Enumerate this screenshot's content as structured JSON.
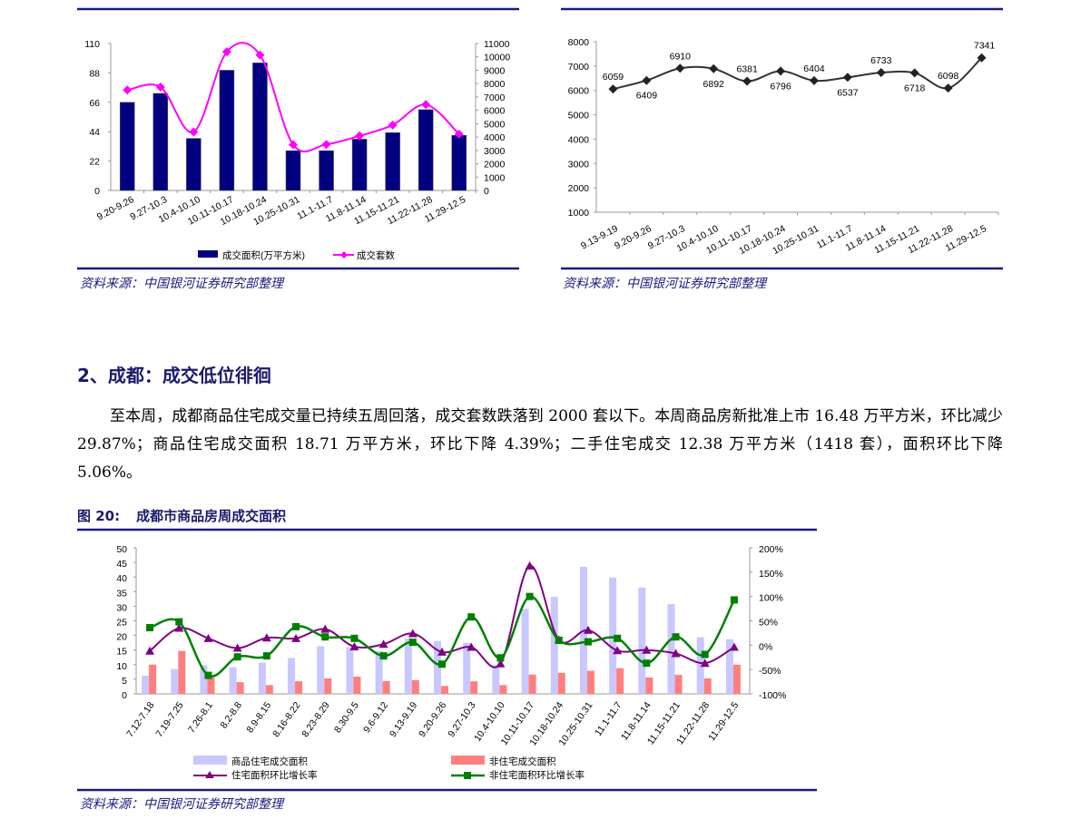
{
  "colors": {
    "rule": "#1a1a80",
    "navy_bar": "#000080",
    "magenta": "#ff00ff",
    "light_bar": "#c8c8ff",
    "red_bar": "#ff7f7f",
    "purple": "#800080",
    "green": "#008000",
    "dark_line": "#333333"
  },
  "source_label": "资料来源：中国银河证券研究部整理",
  "section": {
    "heading": "2、成都：成交低位徘徊",
    "paragraph": "至本周，成都商品住宅成交量已持续五周回落，成交套数跌落到 2000 套以下。本周商品房新批准上市 16.48 万平方米，环比减少 29.87%；商品住宅成交面积 18.71 万平方米，环比下降 4.39%；二手住宅成交 12.38 万平方米（1418 套），面积环比下降 5.06%。"
  },
  "figure20": {
    "number": "图 20:",
    "title": "成都市商品房周成交面积"
  },
  "chart_data": [
    {
      "type": "bar+line",
      "categories": [
        "9.20-9.26",
        "9.27-10.3",
        "10.4-10.10",
        "10.11-10.17",
        "10.18-10.24",
        "10.25-10.31",
        "11.1-11.7",
        "11.8-11.14",
        "11.15-11.21",
        "11.22-11.28",
        "11.29-12.5"
      ],
      "series": [
        {
          "name": "成交面积(万平方米)",
          "type": "bar",
          "axis": "left",
          "values": [
            66,
            72.7,
            39,
            90,
            95.5,
            29.8,
            29.8,
            38.4,
            43.3,
            60.5,
            41.3
          ]
        },
        {
          "name": "成交套数",
          "type": "line",
          "axis": "right",
          "values": [
            7520,
            7740,
            4380,
            10380,
            10140,
            3430,
            3450,
            4090,
            4900,
            6430,
            4220
          ]
        }
      ],
      "left_axis": {
        "ylim": [
          0,
          110
        ],
        "ticks": [
          0,
          22,
          44,
          66,
          88,
          110
        ]
      },
      "right_axis": {
        "ylim": [
          0,
          11000
        ],
        "ticks": [
          0,
          1000,
          2000,
          3000,
          4000,
          5000,
          6000,
          7000,
          8000,
          9000,
          10000,
          11000
        ]
      },
      "legend": "bottom",
      "grid": false
    },
    {
      "type": "line",
      "categories": [
        "9.13-9.19",
        "9.20-9.26",
        "9.27-10.3",
        "10.4-10.10",
        "10.11-10.17",
        "10.18-10.24",
        "10.25-10.31",
        "11.1-11.7",
        "11.8-11.14",
        "11.15-11.21",
        "11.22-11.28",
        "11.29-12.5"
      ],
      "values": [
        6059,
        6409,
        6910,
        6892,
        6381,
        6796,
        6404,
        6537,
        6733,
        6718,
        6098,
        7341
      ],
      "data_labels": true,
      "ylim": [
        1000,
        8000
      ],
      "ticks": [
        1000,
        2000,
        3000,
        4000,
        5000,
        6000,
        7000,
        8000
      ],
      "grid": false
    },
    {
      "type": "bar+line",
      "categories": [
        "7.12-7.18",
        "7.19-7.25",
        "7.26-8.1",
        "8.2-8.8",
        "8.9-8.15",
        "8.16-8.22",
        "8.23-8.29",
        "8.30-9.5",
        "9.6-9.12",
        "9.13-9.19",
        "9.20-9.26",
        "9.27-10.3",
        "10.4-10.10",
        "10.11-10.17",
        "10.18-10.24",
        "10.25-10.31",
        "11.1-11.7",
        "11.8-11.14",
        "11.15-11.21",
        "11.22-11.28",
        "11.29-12.5"
      ],
      "series": [
        {
          "name": "商品住宅成交面积",
          "type": "bar",
          "axis": "left",
          "values": [
            6.2,
            8.5,
            9.8,
            9.1,
            10.7,
            12.3,
            16.3,
            16,
            14.6,
            19,
            18.1,
            17.5,
            9.8,
            29.1,
            33.2,
            43.5,
            39.8,
            36.4,
            30.7,
            19.4,
            18.7
          ]
        },
        {
          "name": "非住宅成交面积",
          "type": "bar",
          "axis": "left",
          "values": [
            10,
            14.7,
            5.5,
            4,
            3,
            4.3,
            5.3,
            5.9,
            4.4,
            4.7,
            2.7,
            4.3,
            3,
            6.6,
            7.2,
            7.9,
            8.8,
            5.6,
            6.5,
            5.3,
            10
          ]
        },
        {
          "name": "住宅面积环比增长率",
          "type": "line",
          "axis": "right",
          "unit": "%",
          "values": [
            -12,
            35,
            14,
            -6,
            15,
            14,
            33,
            -3,
            2,
            24,
            -14,
            -4,
            -38,
            163,
            11,
            31,
            -11,
            -10,
            -17,
            -37,
            -4
          ]
        },
        {
          "name": "非住宅面积环比增长率",
          "type": "line",
          "axis": "right",
          "unit": "%",
          "values": [
            36,
            48,
            -62,
            -24,
            -22,
            38,
            17,
            14,
            -22,
            6,
            -39,
            58,
            -26,
            100,
            10,
            7,
            14,
            -37,
            17,
            -19,
            93
          ]
        }
      ],
      "left_axis": {
        "ylim": [
          0,
          50
        ],
        "ticks": [
          0,
          5,
          10,
          15,
          20,
          25,
          30,
          35,
          40,
          45,
          50
        ]
      },
      "right_axis": {
        "ylim": [
          -100,
          200
        ],
        "ticks": [
          "-100%",
          "-50%",
          "0%",
          "50%",
          "100%",
          "150%",
          "200%"
        ]
      },
      "legend": "bottom",
      "grid": false
    }
  ]
}
